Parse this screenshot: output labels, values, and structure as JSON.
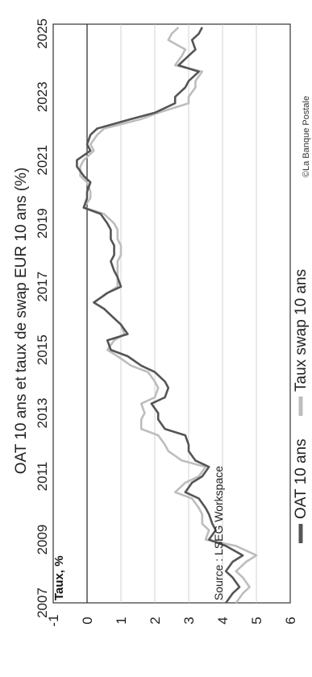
{
  "chart_data": {
    "type": "line",
    "title": "OAT 10 ans et taux de swap EUR 10 ans (%)",
    "ylabel": "Taux, %",
    "source": "Source : LSEG Workspace",
    "copyright": "©La Banque Postale",
    "x_ticks": [
      "2007",
      "2009",
      "2011",
      "2013",
      "2015",
      "2017",
      "2019",
      "2021",
      "2023",
      "2025"
    ],
    "y_ticks": [
      "-1",
      "0",
      "1",
      "2",
      "3",
      "4",
      "5",
      "6"
    ],
    "xlim": [
      2007,
      2025.3
    ],
    "ylim": [
      -1,
      6
    ],
    "grid": true,
    "legend_position": "bottom",
    "colors": {
      "oat": "#555555",
      "swap": "#bdbdbd"
    },
    "series": [
      {
        "name": "OAT 10 ans",
        "x": [
          2007.0,
          2007.3,
          2007.5,
          2007.8,
          2008.0,
          2008.3,
          2008.5,
          2008.8,
          2009.0,
          2009.3,
          2009.5,
          2009.8,
          2010.0,
          2010.3,
          2010.5,
          2010.8,
          2011.0,
          2011.3,
          2011.5,
          2011.8,
          2012.0,
          2012.3,
          2012.5,
          2012.8,
          2013.0,
          2013.3,
          2013.5,
          2013.8,
          2014.0,
          2014.3,
          2014.5,
          2014.8,
          2015.0,
          2015.3,
          2015.5,
          2015.8,
          2016.0,
          2016.3,
          2016.5,
          2016.8,
          2017.0,
          2017.3,
          2017.5,
          2017.8,
          2018.0,
          2018.3,
          2018.5,
          2018.8,
          2019.0,
          2019.3,
          2019.5,
          2019.8,
          2020.0,
          2020.3,
          2020.5,
          2020.8,
          2021.0,
          2021.3,
          2021.5,
          2021.8,
          2022.0,
          2022.3,
          2022.5,
          2022.8,
          2023.0,
          2023.3,
          2023.5,
          2023.8,
          2024.0,
          2024.3,
          2024.5,
          2024.8,
          2025.0,
          2025.2
        ],
        "values": [
          4.1,
          4.3,
          4.5,
          4.3,
          4.1,
          4.3,
          4.6,
          4.1,
          3.6,
          3.8,
          3.7,
          3.6,
          3.5,
          3.3,
          2.9,
          3.1,
          3.4,
          3.6,
          3.2,
          3.0,
          3.0,
          2.9,
          2.3,
          2.1,
          2.1,
          1.9,
          2.3,
          2.4,
          2.3,
          2.0,
          1.6,
          1.2,
          0.7,
          0.6,
          1.2,
          1.0,
          0.8,
          0.5,
          0.2,
          0.6,
          1.0,
          0.9,
          0.8,
          0.7,
          0.8,
          0.8,
          0.7,
          0.7,
          0.6,
          0.4,
          -0.1,
          0.0,
          0.0,
          0.1,
          -0.1,
          -0.3,
          -0.3,
          0.1,
          0.0,
          0.1,
          0.3,
          1.3,
          2.0,
          2.6,
          2.6,
          2.9,
          3.0,
          3.3,
          2.7,
          3.0,
          3.2,
          3.1,
          3.3,
          3.4
        ]
      },
      {
        "name": "Taux swap 10 ans",
        "x": [
          2007.0,
          2007.3,
          2007.5,
          2007.8,
          2008.0,
          2008.3,
          2008.5,
          2008.8,
          2009.0,
          2009.3,
          2009.5,
          2009.8,
          2010.0,
          2010.3,
          2010.5,
          2010.8,
          2011.0,
          2011.3,
          2011.5,
          2011.8,
          2012.0,
          2012.3,
          2012.5,
          2012.8,
          2013.0,
          2013.3,
          2013.5,
          2013.8,
          2014.0,
          2014.3,
          2014.5,
          2014.8,
          2015.0,
          2015.3,
          2015.5,
          2015.8,
          2016.0,
          2016.3,
          2016.5,
          2016.8,
          2017.0,
          2017.3,
          2017.5,
          2017.8,
          2018.0,
          2018.3,
          2018.5,
          2018.8,
          2019.0,
          2019.3,
          2019.5,
          2019.8,
          2020.0,
          2020.3,
          2020.5,
          2020.8,
          2021.0,
          2021.3,
          2021.5,
          2021.8,
          2022.0,
          2022.3,
          2022.5,
          2022.8,
          2023.0,
          2023.3,
          2023.5,
          2023.8,
          2024.0,
          2024.3,
          2024.5,
          2024.8,
          2025.0,
          2025.2
        ],
        "values": [
          4.4,
          4.6,
          4.8,
          4.6,
          4.4,
          4.7,
          5.0,
          4.4,
          3.5,
          3.6,
          3.4,
          3.4,
          3.3,
          3.1,
          2.6,
          2.9,
          3.3,
          3.5,
          2.8,
          2.4,
          2.3,
          2.1,
          1.6,
          1.6,
          1.7,
          1.6,
          2.0,
          2.1,
          2.0,
          1.8,
          1.3,
          0.9,
          0.6,
          0.8,
          1.1,
          1.0,
          0.8,
          0.5,
          0.2,
          0.6,
          0.9,
          0.9,
          0.9,
          0.9,
          1.0,
          1.0,
          0.9,
          0.9,
          0.8,
          0.5,
          -0.1,
          0.1,
          0.1,
          0.0,
          -0.2,
          -0.2,
          -0.1,
          0.2,
          0.1,
          0.3,
          0.5,
          1.6,
          2.1,
          3.0,
          3.0,
          3.2,
          3.2,
          3.4,
          2.6,
          2.8,
          2.9,
          2.4,
          2.5,
          2.7
        ]
      }
    ]
  }
}
